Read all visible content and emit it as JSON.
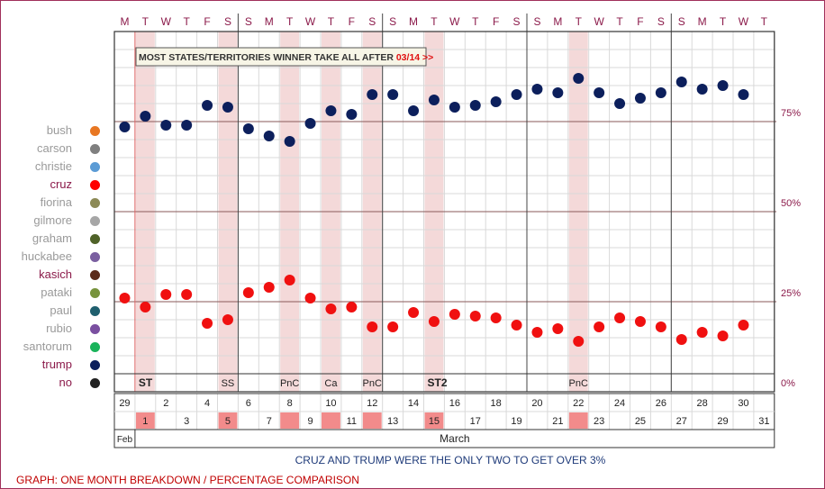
{
  "chart_data": {
    "type": "scatter",
    "title": "",
    "weekday_letters": [
      "M",
      "T",
      "W",
      "T",
      "F",
      "S",
      "S",
      "M",
      "T",
      "W",
      "T",
      "F",
      "S",
      "S",
      "M",
      "T",
      "W",
      "T",
      "F",
      "S",
      "S",
      "M",
      "T",
      "W",
      "T",
      "F",
      "S",
      "S",
      "M",
      "T",
      "W",
      "T"
    ],
    "dates_row1": [
      "29",
      "",
      "2",
      "",
      "4",
      "",
      "6",
      "",
      "8",
      "",
      "10",
      "",
      "12",
      "",
      "14",
      "",
      "16",
      "",
      "18",
      "",
      "20",
      "",
      "22",
      "",
      "24",
      "",
      "26",
      "",
      "28",
      "",
      "30",
      ""
    ],
    "dates_row2": [
      "",
      "1",
      "",
      "3",
      "",
      "5",
      "",
      "7",
      "",
      "9",
      "",
      "11",
      "",
      "13",
      "",
      "15",
      "",
      "17",
      "",
      "19",
      "",
      "21",
      "",
      "23",
      "",
      "25",
      "",
      "27",
      "",
      "29",
      "",
      "31"
    ],
    "highlighted_days": [
      1,
      5,
      8,
      10,
      12,
      15,
      22
    ],
    "shaded_columns": [
      1,
      5,
      8,
      10,
      12,
      15,
      22
    ],
    "event_labels": [
      {
        "day": 1,
        "text": "ST",
        "bold": true
      },
      {
        "day": 5,
        "text": "SS",
        "bold": false
      },
      {
        "day": 8,
        "text": "PnC",
        "bold": false
      },
      {
        "day": 10,
        "text": "Ca",
        "bold": false
      },
      {
        "day": 12,
        "text": "PnC",
        "bold": false
      },
      {
        "day": 15,
        "text": "ST2",
        "bold": true
      },
      {
        "day": 22,
        "text": "PnC",
        "bold": false
      }
    ],
    "month_labels": [
      {
        "text": "Feb",
        "col_start": 0,
        "col_end": 0
      },
      {
        "text": "March",
        "col_start": 1,
        "col_end": 31
      }
    ],
    "annotation": {
      "text_main": "MOST STATES/TERRITORIES WINNER TAKE ALL AFTER",
      "text_accent": "03/14 >>"
    },
    "ylim": [
      0,
      100
    ],
    "y_ticks": [
      {
        "value": 0,
        "label": "0%"
      },
      {
        "value": 25,
        "label": "25%"
      },
      {
        "value": 50,
        "label": "50%"
      },
      {
        "value": 75,
        "label": "75%"
      }
    ],
    "x": [
      "Feb 29",
      "Mar 1",
      "Mar 2",
      "Mar 3",
      "Mar 4",
      "Mar 5",
      "Mar 6",
      "Mar 7",
      "Mar 8",
      "Mar 9",
      "Mar 10",
      "Mar 11",
      "Mar 12",
      "Mar 13",
      "Mar 14",
      "Mar 15",
      "Mar 16",
      "Mar 17",
      "Mar 18",
      "Mar 19",
      "Mar 20",
      "Mar 21",
      "Mar 22",
      "Mar 23",
      "Mar 24",
      "Mar 25",
      "Mar 26",
      "Mar 27",
      "Mar 28",
      "Mar 29",
      "Mar 30",
      "Mar 31"
    ],
    "series": [
      {
        "name": "trump",
        "color": "#0c1f5c",
        "values": [
          73.5,
          76.5,
          74,
          74,
          79.5,
          79,
          73,
          71,
          69.5,
          74.5,
          78,
          77,
          82.5,
          82.5,
          78,
          81,
          79,
          79.5,
          80.5,
          82.5,
          84,
          83,
          87,
          83,
          80,
          81.5,
          83,
          86,
          84,
          85,
          82.5,
          null
        ]
      },
      {
        "name": "cruz",
        "color": "#f01010",
        "values": [
          26,
          23.5,
          27,
          27,
          19,
          20,
          27.5,
          29,
          31,
          26,
          23,
          23.5,
          18,
          18,
          22,
          19.5,
          21.5,
          21,
          20.5,
          18.5,
          16.5,
          17.5,
          14,
          18,
          20.5,
          19.5,
          18,
          14.5,
          16.5,
          15.5,
          18.5,
          null
        ]
      }
    ],
    "grid": true
  },
  "legend": {
    "items": [
      {
        "name": "bush",
        "color": "#e87722",
        "text_color": "#9a9a9a"
      },
      {
        "name": "carson",
        "color": "#7f7f7f",
        "text_color": "#9a9a9a"
      },
      {
        "name": "christie",
        "color": "#5b9bd5",
        "text_color": "#9a9a9a"
      },
      {
        "name": "cruz",
        "color": "#ff0000",
        "text_color": "#8b1a4a"
      },
      {
        "name": "fiorina",
        "color": "#8c8a56",
        "text_color": "#9a9a9a"
      },
      {
        "name": "gilmore",
        "color": "#a6a6a6",
        "text_color": "#9a9a9a"
      },
      {
        "name": "graham",
        "color": "#4f6228",
        "text_color": "#9a9a9a"
      },
      {
        "name": "huckabee",
        "color": "#7a5fa0",
        "text_color": "#9a9a9a"
      },
      {
        "name": "kasich",
        "color": "#5a2a1a",
        "text_color": "#8b1a4a"
      },
      {
        "name": "pataki",
        "color": "#77933c",
        "text_color": "#9a9a9a"
      },
      {
        "name": "paul",
        "color": "#1f5f6e",
        "text_color": "#9a9a9a"
      },
      {
        "name": "rubio",
        "color": "#7a4fa0",
        "text_color": "#9a9a9a"
      },
      {
        "name": "santorum",
        "color": "#19b35a",
        "text_color": "#9a9a9a"
      },
      {
        "name": "trump",
        "color": "#0c1f5c",
        "text_color": "#8b1a4a"
      },
      {
        "name": "no",
        "color": "#222222",
        "text_color": "#8b1a4a"
      }
    ]
  },
  "footer": {
    "note": "CRUZ AND TRUMP WERE THE ONLY TWO TO GET OVER 3%",
    "caption": "GRAPH: ONE MONTH BREAKDOWN / PERCENTAGE COMPARISON"
  },
  "colors": {
    "weekday_letters": "#8b1a4a",
    "highlight_fill": "#f28b8b",
    "shade_fill": "#f4d9d9",
    "axis_line": "#7a2f2f",
    "grid": "#d9d9d9",
    "week_divider": "#444444"
  }
}
